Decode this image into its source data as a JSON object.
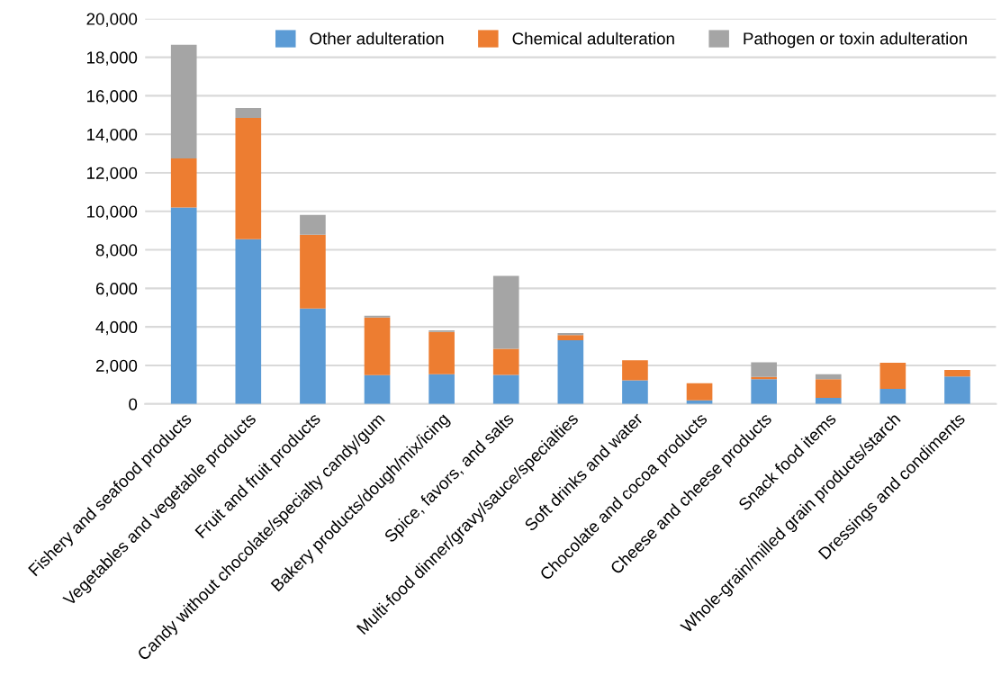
{
  "chart_data": {
    "type": "bar",
    "stacked": true,
    "categories": [
      "Fishery and seafood products",
      "Vegetables and vegetable products",
      "Fruit and fruit products",
      "Candy without chocolate/specialty candy/gum",
      "Bakery products/dough/mix/icing",
      "Spice, favors, and salts",
      "Multi-food dinner/gravy/sauce/specialties",
      "Soft drinks and water",
      "Chocolate and cocoa products",
      "Cheese and cheese products",
      "Snack food items",
      "Whole-grain/milled grain products/starch",
      "Dressings and condiments"
    ],
    "series": [
      {
        "name": "Other adulteration",
        "color": "#5b9bd5",
        "values": [
          10200,
          8550,
          4950,
          1500,
          1540,
          1510,
          3300,
          1230,
          190,
          1280,
          310,
          780,
          1420
        ]
      },
      {
        "name": "Chemical adulteration",
        "color": "#ed7d31",
        "values": [
          2550,
          6300,
          3840,
          2990,
          2200,
          1350,
          270,
          1030,
          880,
          120,
          970,
          1360,
          340
        ]
      },
      {
        "name": "Pathogen or toxin adulteration",
        "color": "#a5a5a5",
        "values": [
          5900,
          510,
          1020,
          90,
          80,
          3790,
          110,
          0,
          0,
          760,
          260,
          0,
          0
        ]
      }
    ],
    "ylim": [
      0,
      20000
    ],
    "yticks": [
      {
        "value": 0,
        "label": "0"
      },
      {
        "value": 2000,
        "label": "2,000"
      },
      {
        "value": 4000,
        "label": "4,000"
      },
      {
        "value": 6000,
        "label": "6,000"
      },
      {
        "value": 8000,
        "label": "8,000"
      },
      {
        "value": 10000,
        "label": "10,000"
      },
      {
        "value": 12000,
        "label": "12,000"
      },
      {
        "value": 14000,
        "label": "14,000"
      },
      {
        "value": 16000,
        "label": "16,000"
      },
      {
        "value": 18000,
        "label": "18,000"
      },
      {
        "value": 20000,
        "label": "20,000"
      }
    ],
    "grid": "y",
    "legend": "top"
  }
}
